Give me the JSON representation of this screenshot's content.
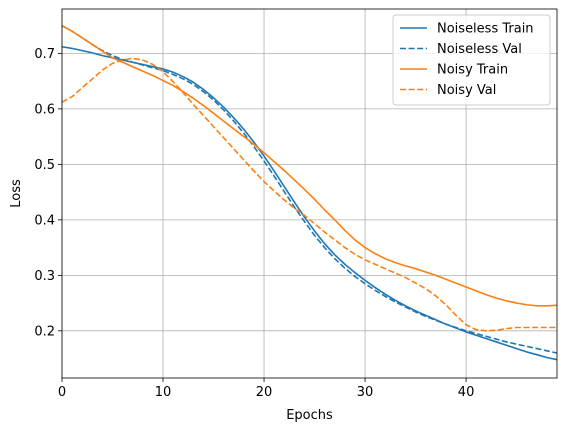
{
  "chart_data": {
    "type": "line",
    "title": "",
    "xlabel": "Epochs",
    "ylabel": "Loss",
    "xlim": [
      0,
      49
    ],
    "ylim": [
      0.115,
      0.78
    ],
    "xticks": [
      0,
      10,
      20,
      30,
      40
    ],
    "yticks": [
      0.2,
      0.3,
      0.4,
      0.5,
      0.6,
      0.7
    ],
    "grid": true,
    "legend_position": "top-right",
    "x": [
      0,
      1,
      2,
      3,
      4,
      5,
      6,
      7,
      8,
      9,
      10,
      11,
      12,
      13,
      14,
      15,
      16,
      17,
      18,
      19,
      20,
      21,
      22,
      23,
      24,
      25,
      26,
      27,
      28,
      29,
      30,
      31,
      32,
      33,
      34,
      35,
      36,
      37,
      38,
      39,
      40,
      41,
      42,
      43,
      44,
      45,
      46,
      47,
      48,
      49
    ],
    "series": [
      {
        "name": "Noiseless Train",
        "color": "#1f77b4",
        "dash": "solid",
        "values": [
          0.712,
          0.709,
          0.705,
          0.701,
          0.696,
          0.692,
          0.688,
          0.684,
          0.68,
          0.676,
          0.672,
          0.666,
          0.658,
          0.648,
          0.635,
          0.62,
          0.603,
          0.584,
          0.563,
          0.54,
          0.515,
          0.488,
          0.46,
          0.432,
          0.405,
          0.38,
          0.357,
          0.337,
          0.32,
          0.305,
          0.291,
          0.278,
          0.266,
          0.255,
          0.245,
          0.236,
          0.228,
          0.22,
          0.212,
          0.205,
          0.198,
          0.192,
          0.186,
          0.18,
          0.174,
          0.168,
          0.162,
          0.157,
          0.152,
          0.148
        ]
      },
      {
        "name": "Noiseless Val",
        "color": "#1f77b4",
        "dash": "dashed",
        "values": [
          0.75,
          0.74,
          0.728,
          0.716,
          0.705,
          0.696,
          0.689,
          0.684,
          0.679,
          0.674,
          0.669,
          0.662,
          0.654,
          0.644,
          0.631,
          0.616,
          0.598,
          0.578,
          0.556,
          0.532,
          0.506,
          0.479,
          0.451,
          0.423,
          0.397,
          0.372,
          0.35,
          0.33,
          0.313,
          0.298,
          0.285,
          0.273,
          0.262,
          0.252,
          0.243,
          0.234,
          0.226,
          0.219,
          0.212,
          0.206,
          0.2,
          0.195,
          0.19,
          0.185,
          0.18,
          0.176,
          0.172,
          0.168,
          0.164,
          0.16
        ]
      },
      {
        "name": "Noisy Train",
        "color": "#ff7f0e",
        "dash": "solid",
        "values": [
          0.75,
          0.74,
          0.728,
          0.716,
          0.704,
          0.692,
          0.684,
          0.676,
          0.668,
          0.66,
          0.651,
          0.642,
          0.631,
          0.619,
          0.606,
          0.592,
          0.578,
          0.564,
          0.55,
          0.536,
          0.521,
          0.505,
          0.489,
          0.472,
          0.455,
          0.437,
          0.418,
          0.4,
          0.381,
          0.364,
          0.35,
          0.339,
          0.33,
          0.323,
          0.317,
          0.312,
          0.306,
          0.3,
          0.293,
          0.286,
          0.279,
          0.272,
          0.265,
          0.259,
          0.254,
          0.25,
          0.247,
          0.245,
          0.245,
          0.246
        ]
      },
      {
        "name": "Noisy Val",
        "color": "#ff7f0e",
        "dash": "dashed",
        "values": [
          0.612,
          0.622,
          0.638,
          0.654,
          0.67,
          0.682,
          0.688,
          0.691,
          0.688,
          0.68,
          0.667,
          0.649,
          0.629,
          0.608,
          0.588,
          0.568,
          0.548,
          0.528,
          0.508,
          0.488,
          0.469,
          0.452,
          0.436,
          0.421,
          0.408,
          0.393,
          0.378,
          0.364,
          0.35,
          0.338,
          0.328,
          0.32,
          0.312,
          0.304,
          0.296,
          0.286,
          0.276,
          0.263,
          0.247,
          0.228,
          0.211,
          0.202,
          0.2,
          0.201,
          0.204,
          0.206,
          0.206,
          0.206,
          0.206,
          0.206
        ]
      }
    ]
  }
}
